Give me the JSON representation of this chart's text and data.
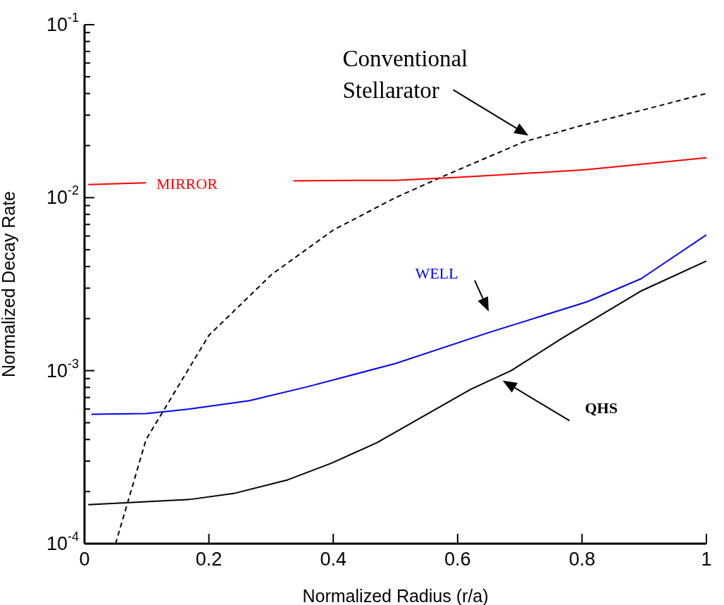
{
  "chart_data": {
    "type": "line",
    "xlabel": "Normalized Radius (r/a)",
    "ylabel": "Normalized Decay Rate",
    "log": "y",
    "marker": "none",
    "xlim": [
      0,
      1
    ],
    "xticks": [
      0,
      0.2,
      0.4,
      0.6,
      0.8,
      1
    ],
    "ylim": [
      0.0001,
      0.1
    ],
    "yticks": [
      {
        "value": 0.0001,
        "label": "10$^{-4}$"
      },
      {
        "value": 0.0002,
        "label": null
      },
      {
        "value": 0.0003,
        "label": null
      },
      {
        "value": 0.0004,
        "label": null
      },
      {
        "value": 0.0005,
        "label": null
      },
      {
        "value": 0.0006,
        "label": null
      },
      {
        "value": 0.0007,
        "label": null
      },
      {
        "value": 0.0008,
        "label": null
      },
      {
        "value": 0.0009,
        "label": null
      },
      {
        "value": 0.001,
        "label": "10$^{-3}$"
      },
      {
        "value": 0.002,
        "label": null
      },
      {
        "value": 0.003,
        "label": null
      },
      {
        "value": 0.004,
        "label": null
      },
      {
        "value": 0.005,
        "label": null
      },
      {
        "value": 0.006,
        "label": null
      },
      {
        "value": 0.007,
        "label": null
      },
      {
        "value": 0.008,
        "label": null
      },
      {
        "value": 0.009,
        "label": null
      },
      {
        "value": 0.01,
        "label": "10$^{-2}$"
      },
      {
        "value": 0.02,
        "label": null
      },
      {
        "value": 0.03,
        "label": null
      },
      {
        "value": 0.04,
        "label": null
      },
      {
        "value": 0.05,
        "label": null
      },
      {
        "value": 0.06,
        "label": null
      },
      {
        "value": 0.07,
        "label": null
      },
      {
        "value": 0.08,
        "label": null
      },
      {
        "value": 0.09,
        "label": null
      },
      {
        "value": 0.1,
        "label": "10$^{-1}$"
      }
    ],
    "series": [
      {
        "name": "Conventional Stellarator",
        "color": "#000000",
        "line_style": "dashed",
        "x": [
          0.05,
          0.099,
          0.2,
          0.301,
          0.4,
          0.5,
          0.577,
          0.706,
          0.797,
          0.896,
          1.0
        ],
        "values": [
          0.0001,
          0.0004,
          0.0016,
          0.0036,
          0.0065,
          0.01,
          0.0133,
          0.021,
          0.026,
          0.032,
          0.04
        ]
      },
      {
        "name": "MIRROR",
        "color": "#ff0000",
        "line_style": "solid",
        "x": [
          0.006,
          0.099,
          0.2,
          0.336,
          0.44,
          0.5,
          0.6,
          0.706,
          0.805,
          1.0
        ],
        "values": [
          0.0119,
          0.0122,
          null,
          0.0125,
          0.0126,
          0.0126,
          0.0131,
          0.0138,
          0.0145,
          0.017
        ]
      },
      {
        "name": "WELL",
        "color": "#0000ff",
        "line_style": "solid",
        "x": [
          0.011,
          0.099,
          0.169,
          0.265,
          0.36,
          0.5,
          0.65,
          0.808,
          0.895,
          1.0
        ],
        "values": [
          0.00056,
          0.000565,
          0.0006,
          0.00067,
          0.00081,
          0.0011,
          0.00166,
          0.0025,
          0.0034,
          0.0061
        ]
      },
      {
        "name": "QHS",
        "color": "#000000",
        "line_style": "solid",
        "x": [
          0.006,
          0.169,
          0.24,
          0.327,
          0.397,
          0.47,
          0.621,
          0.686,
          0.768,
          0.896,
          1.0
        ],
        "values": [
          0.000168,
          0.00018,
          0.000195,
          0.000234,
          0.000292,
          0.000383,
          0.00078,
          0.001,
          0.00154,
          0.0029,
          0.0043
        ]
      }
    ]
  }
}
